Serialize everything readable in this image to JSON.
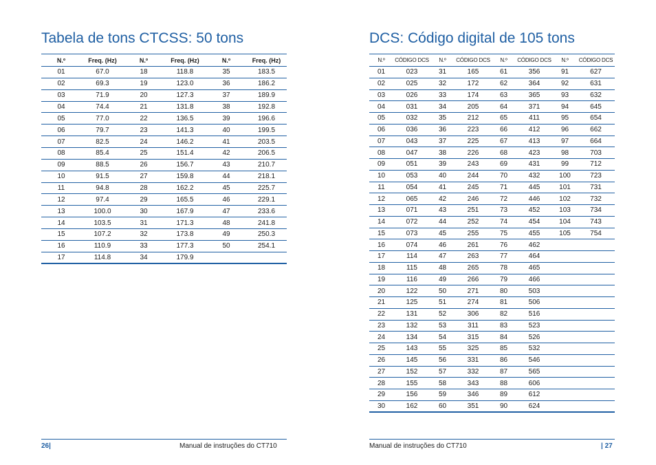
{
  "left_page": {
    "title": "Tabela de tons CTCSS: 50 tons",
    "headers": [
      "N.º",
      "Freq. (Hz)",
      "N.º",
      "Freq. (Hz)",
      "N.º",
      "Freq. (Hz)"
    ],
    "rows": [
      [
        "01",
        "67.0",
        "18",
        "118.8",
        "35",
        "183.5"
      ],
      [
        "02",
        "69.3",
        "19",
        "123.0",
        "36",
        "186.2"
      ],
      [
        "03",
        "71.9",
        "20",
        "127.3",
        "37",
        "189.9"
      ],
      [
        "04",
        "74.4",
        "21",
        "131.8",
        "38",
        "192.8"
      ],
      [
        "05",
        "77.0",
        "22",
        "136.5",
        "39",
        "196.6"
      ],
      [
        "06",
        "79.7",
        "23",
        "141.3",
        "40",
        "199.5"
      ],
      [
        "07",
        "82.5",
        "24",
        "146.2",
        "41",
        "203.5"
      ],
      [
        "08",
        "85.4",
        "25",
        "151.4",
        "42",
        "206.5"
      ],
      [
        "09",
        "88.5",
        "26",
        "156.7",
        "43",
        "210.7"
      ],
      [
        "10",
        "91.5",
        "27",
        "159.8",
        "44",
        "218.1"
      ],
      [
        "11",
        "94.8",
        "28",
        "162.2",
        "45",
        "225.7"
      ],
      [
        "12",
        "97.4",
        "29",
        "165.5",
        "46",
        "229.1"
      ],
      [
        "13",
        "100.0",
        "30",
        "167.9",
        "47",
        "233.6"
      ],
      [
        "14",
        "103.5",
        "31",
        "171.3",
        "48",
        "241.8"
      ],
      [
        "15",
        "107.2",
        "32",
        "173.8",
        "49",
        "250.3"
      ],
      [
        "16",
        "110.9",
        "33",
        "177.3",
        "50",
        "254.1"
      ],
      [
        "17",
        "114.8",
        "34",
        "179.9",
        "",
        ""
      ]
    ],
    "footer": {
      "page_number": "26|",
      "manual": "Manual de instruções do CT710"
    }
  },
  "right_page": {
    "title": "DCS: Código digital de 105 tons",
    "headers": [
      "N.º",
      "CÓDIGO DCS",
      "N.º",
      "CÓDIGO DCS",
      "N.º",
      "CÓDIGO DCS",
      "N.º",
      "CÓDIGO DCS"
    ],
    "rows": [
      [
        "01",
        "023",
        "31",
        "165",
        "61",
        "356",
        "91",
        "627"
      ],
      [
        "02",
        "025",
        "32",
        "172",
        "62",
        "364",
        "92",
        "631"
      ],
      [
        "03",
        "026",
        "33",
        "174",
        "63",
        "365",
        "93",
        "632"
      ],
      [
        "04",
        "031",
        "34",
        "205",
        "64",
        "371",
        "94",
        "645"
      ],
      [
        "05",
        "032",
        "35",
        "212",
        "65",
        "411",
        "95",
        "654"
      ],
      [
        "06",
        "036",
        "36",
        "223",
        "66",
        "412",
        "96",
        "662"
      ],
      [
        "07",
        "043",
        "37",
        "225",
        "67",
        "413",
        "97",
        "664"
      ],
      [
        "08",
        "047",
        "38",
        "226",
        "68",
        "423",
        "98",
        "703"
      ],
      [
        "09",
        "051",
        "39",
        "243",
        "69",
        "431",
        "99",
        "712"
      ],
      [
        "10",
        "053",
        "40",
        "244",
        "70",
        "432",
        "100",
        "723"
      ],
      [
        "11",
        "054",
        "41",
        "245",
        "71",
        "445",
        "101",
        "731"
      ],
      [
        "12",
        "065",
        "42",
        "246",
        "72",
        "446",
        "102",
        "732"
      ],
      [
        "13",
        "071",
        "43",
        "251",
        "73",
        "452",
        "103",
        "734"
      ],
      [
        "14",
        "072",
        "44",
        "252",
        "74",
        "454",
        "104",
        "743"
      ],
      [
        "15",
        "073",
        "45",
        "255",
        "75",
        "455",
        "105",
        "754"
      ],
      [
        "16",
        "074",
        "46",
        "261",
        "76",
        "462",
        "",
        ""
      ],
      [
        "17",
        "114",
        "47",
        "263",
        "77",
        "464",
        "",
        ""
      ],
      [
        "18",
        "115",
        "48",
        "265",
        "78",
        "465",
        "",
        ""
      ],
      [
        "19",
        "116",
        "49",
        "266",
        "79",
        "466",
        "",
        ""
      ],
      [
        "20",
        "122",
        "50",
        "271",
        "80",
        "503",
        "",
        ""
      ],
      [
        "21",
        "125",
        "51",
        "274",
        "81",
        "506",
        "",
        ""
      ],
      [
        "22",
        "131",
        "52",
        "306",
        "82",
        "516",
        "",
        ""
      ],
      [
        "23",
        "132",
        "53",
        "311",
        "83",
        "523",
        "",
        ""
      ],
      [
        "24",
        "134",
        "54",
        "315",
        "84",
        "526",
        "",
        ""
      ],
      [
        "25",
        "143",
        "55",
        "325",
        "85",
        "532",
        "",
        ""
      ],
      [
        "26",
        "145",
        "56",
        "331",
        "86",
        "546",
        "",
        ""
      ],
      [
        "27",
        "152",
        "57",
        "332",
        "87",
        "565",
        "",
        ""
      ],
      [
        "28",
        "155",
        "58",
        "343",
        "88",
        "606",
        "",
        ""
      ],
      [
        "29",
        "156",
        "59",
        "346",
        "89",
        "612",
        "",
        ""
      ],
      [
        "30",
        "162",
        "60",
        "351",
        "90",
        "624",
        "",
        ""
      ]
    ],
    "footer": {
      "manual": "Manual de instruções do CT710",
      "page_number": "| 27"
    }
  },
  "colors": {
    "accent": "#1f5fa3",
    "text": "#1a1a1a"
  }
}
